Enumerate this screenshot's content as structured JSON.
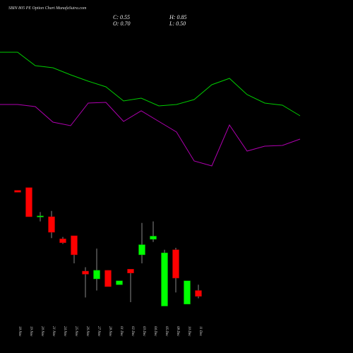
{
  "header": {
    "title": "SBIN 805 PE Option Chart MunafaSutra.com",
    "close": "C: 0.55",
    "open": "O: 0.70",
    "high": "H: 0.85",
    "low": "L: 0.50"
  },
  "colors": {
    "background": "#000000",
    "bull": "#00ff00",
    "bear": "#ff0000",
    "line_upper": "#00cc00",
    "line_lower": "#b000b0",
    "wick": "#888888"
  },
  "chart_data": {
    "type": "candlestick",
    "ylim": [
      0.0,
      4.0
    ],
    "candles": [
      {
        "date": "18 Nov",
        "open": 3.28,
        "high": 3.28,
        "low": 3.23,
        "close": 3.23
      },
      {
        "date": "19 Nov",
        "open": 3.35,
        "high": 3.35,
        "low": 2.6,
        "close": 2.6
      },
      {
        "date": "20 Nov",
        "open": 2.62,
        "high": 2.72,
        "low": 2.48,
        "close": 2.62
      },
      {
        "date": "21 Nov",
        "open": 2.6,
        "high": 2.75,
        "low": 2.05,
        "close": 2.2
      },
      {
        "date": "24 Nov",
        "open": 2.03,
        "high": 2.08,
        "low": 1.9,
        "close": 1.93
      },
      {
        "date": "25 Nov",
        "open": 2.11,
        "high": 2.11,
        "low": 1.4,
        "close": 1.62
      },
      {
        "date": "26 Nov",
        "open": 1.2,
        "high": 1.3,
        "low": 0.52,
        "close": 1.12
      },
      {
        "date": "27 Nov",
        "open": 1.0,
        "high": 1.78,
        "low": 0.7,
        "close": 1.22
      },
      {
        "date": "28 Nov",
        "open": 1.22,
        "high": 1.22,
        "low": 0.8,
        "close": 0.8
      },
      {
        "date": "01 Dec",
        "open": 0.85,
        "high": 0.95,
        "low": 0.85,
        "close": 0.95
      },
      {
        "date": "02 Dec",
        "open": 1.25,
        "high": 1.25,
        "low": 0.4,
        "close": 1.15
      },
      {
        "date": "03 Dec",
        "open": 1.62,
        "high": 2.44,
        "low": 1.4,
        "close": 1.88
      },
      {
        "date": "04 Dec",
        "open": 2.02,
        "high": 2.48,
        "low": 1.95,
        "close": 2.1
      },
      {
        "date": "05 Dec",
        "open": 0.3,
        "high": 1.75,
        "low": 0.3,
        "close": 1.67
      },
      {
        "date": "08 Dec",
        "open": 1.75,
        "high": 1.8,
        "low": 0.65,
        "close": 1.02
      },
      {
        "date": "10 Dec",
        "open": 0.35,
        "high": 0.95,
        "low": 0.35,
        "close": 0.95
      },
      {
        "date": "11 Dec",
        "open": 0.7,
        "high": 0.85,
        "low": 0.5,
        "close": 0.55
      }
    ]
  }
}
